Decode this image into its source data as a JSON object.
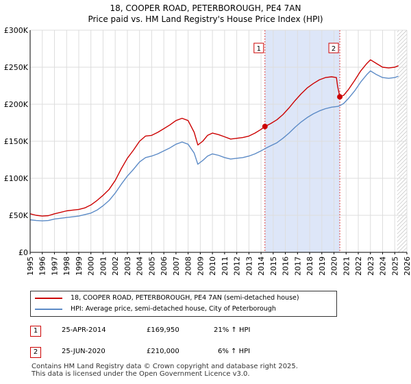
{
  "title": {
    "line1": "18, COOPER ROAD, PETERBOROUGH, PE4 7AN",
    "line2": "Price paid vs. HM Land Registry's House Price Index (HPI)"
  },
  "colors": {
    "property": "#cc0000",
    "hpi": "#5b8ac6",
    "shade": "#dde6f8",
    "grid": "#dddddd",
    "marker_line": "#dd4444"
  },
  "chart_data": {
    "type": "line",
    "xlabel": "",
    "ylabel": "",
    "xlim": [
      1995,
      2026
    ],
    "ylim": [
      0,
      300000
    ],
    "yticks": [
      0,
      50000,
      100000,
      150000,
      200000,
      250000,
      300000
    ],
    "ytick_labels": [
      "£0",
      "£50K",
      "£100K",
      "£150K",
      "£200K",
      "£250K",
      "£300K"
    ],
    "xticks": [
      "1995",
      "1996",
      "1997",
      "1998",
      "1999",
      "2000",
      "2001",
      "2002",
      "2003",
      "2004",
      "2005",
      "2006",
      "2007",
      "2008",
      "2009",
      "2010",
      "2011",
      "2012",
      "2013",
      "2014",
      "2015",
      "2016",
      "2017",
      "2018",
      "2019",
      "2020",
      "2021",
      "2022",
      "2023",
      "2024",
      "2025",
      "2026"
    ],
    "grid": true,
    "shaded_range": [
      2014.32,
      2020.48
    ],
    "future_hatch_from": 2025.2,
    "series": [
      {
        "name": "18, COOPER ROAD, PETERBOROUGH, PE4 7AN (semi-detached house)",
        "points": [
          [
            1995.0,
            52000
          ],
          [
            1995.5,
            50000
          ],
          [
            1996.0,
            49000
          ],
          [
            1996.5,
            49500
          ],
          [
            1997.0,
            52000
          ],
          [
            1997.5,
            54000
          ],
          [
            1998.0,
            56000
          ],
          [
            1998.5,
            57000
          ],
          [
            1999.0,
            58000
          ],
          [
            1999.5,
            60000
          ],
          [
            2000.0,
            64000
          ],
          [
            2000.5,
            70000
          ],
          [
            2001.0,
            77000
          ],
          [
            2001.5,
            85000
          ],
          [
            2002.0,
            97000
          ],
          [
            2002.5,
            113000
          ],
          [
            2003.0,
            127000
          ],
          [
            2003.5,
            138000
          ],
          [
            2004.0,
            150000
          ],
          [
            2004.5,
            157000
          ],
          [
            2005.0,
            158000
          ],
          [
            2005.5,
            162000
          ],
          [
            2006.0,
            167000
          ],
          [
            2006.5,
            172000
          ],
          [
            2007.0,
            178000
          ],
          [
            2007.5,
            181000
          ],
          [
            2008.0,
            178000
          ],
          [
            2008.5,
            162000
          ],
          [
            2008.8,
            145000
          ],
          [
            2009.2,
            150000
          ],
          [
            2009.6,
            158000
          ],
          [
            2010.0,
            161000
          ],
          [
            2010.5,
            159000
          ],
          [
            2011.0,
            156000
          ],
          [
            2011.5,
            153000
          ],
          [
            2012.0,
            154000
          ],
          [
            2012.5,
            155000
          ],
          [
            2013.0,
            157000
          ],
          [
            2013.5,
            161000
          ],
          [
            2014.0,
            166000
          ],
          [
            2014.32,
            169950
          ],
          [
            2014.8,
            174000
          ],
          [
            2015.3,
            179000
          ],
          [
            2015.8,
            186000
          ],
          [
            2016.3,
            195000
          ],
          [
            2016.8,
            205000
          ],
          [
            2017.3,
            214000
          ],
          [
            2017.8,
            222000
          ],
          [
            2018.3,
            228000
          ],
          [
            2018.8,
            233000
          ],
          [
            2019.3,
            236000
          ],
          [
            2019.8,
            237000
          ],
          [
            2020.2,
            236000
          ],
          [
            2020.3,
            224000
          ],
          [
            2020.48,
            210000
          ],
          [
            2020.8,
            212000
          ],
          [
            2021.2,
            220000
          ],
          [
            2021.7,
            232000
          ],
          [
            2022.2,
            245000
          ],
          [
            2022.7,
            255000
          ],
          [
            2023.0,
            260000
          ],
          [
            2023.5,
            255000
          ],
          [
            2024.0,
            250000
          ],
          [
            2024.5,
            249000
          ],
          [
            2025.0,
            250000
          ],
          [
            2025.3,
            252000
          ]
        ]
      },
      {
        "name": "HPI: Average price, semi-detached house, City of Peterborough",
        "points": [
          [
            1995.0,
            44000
          ],
          [
            1995.5,
            43000
          ],
          [
            1996.0,
            42500
          ],
          [
            1996.5,
            43000
          ],
          [
            1997.0,
            45000
          ],
          [
            1997.5,
            46000
          ],
          [
            1998.0,
            47000
          ],
          [
            1998.5,
            48000
          ],
          [
            1999.0,
            49000
          ],
          [
            1999.5,
            51000
          ],
          [
            2000.0,
            53000
          ],
          [
            2000.5,
            57000
          ],
          [
            2001.0,
            63000
          ],
          [
            2001.5,
            70000
          ],
          [
            2002.0,
            80000
          ],
          [
            2002.5,
            92000
          ],
          [
            2003.0,
            103000
          ],
          [
            2003.5,
            112000
          ],
          [
            2004.0,
            122000
          ],
          [
            2004.5,
            128000
          ],
          [
            2005.0,
            130000
          ],
          [
            2005.5,
            133000
          ],
          [
            2006.0,
            137000
          ],
          [
            2006.5,
            141000
          ],
          [
            2007.0,
            146000
          ],
          [
            2007.5,
            149000
          ],
          [
            2008.0,
            146000
          ],
          [
            2008.5,
            134000
          ],
          [
            2008.8,
            119000
          ],
          [
            2009.2,
            124000
          ],
          [
            2009.6,
            130000
          ],
          [
            2010.0,
            133000
          ],
          [
            2010.5,
            131000
          ],
          [
            2011.0,
            128000
          ],
          [
            2011.5,
            126000
          ],
          [
            2012.0,
            127000
          ],
          [
            2012.5,
            128000
          ],
          [
            2013.0,
            130000
          ],
          [
            2013.5,
            133000
          ],
          [
            2014.0,
            137000
          ],
          [
            2014.32,
            140000
          ],
          [
            2014.8,
            144000
          ],
          [
            2015.3,
            148000
          ],
          [
            2015.8,
            154000
          ],
          [
            2016.3,
            161000
          ],
          [
            2016.8,
            169000
          ],
          [
            2017.3,
            176000
          ],
          [
            2017.8,
            182000
          ],
          [
            2018.3,
            187000
          ],
          [
            2018.8,
            191000
          ],
          [
            2019.3,
            194000
          ],
          [
            2019.8,
            196000
          ],
          [
            2020.3,
            197000
          ],
          [
            2020.48,
            198000
          ],
          [
            2020.8,
            201000
          ],
          [
            2021.2,
            208000
          ],
          [
            2021.7,
            218000
          ],
          [
            2022.2,
            230000
          ],
          [
            2022.7,
            240000
          ],
          [
            2023.0,
            245000
          ],
          [
            2023.5,
            240000
          ],
          [
            2024.0,
            236000
          ],
          [
            2024.5,
            235000
          ],
          [
            2025.0,
            236000
          ],
          [
            2025.3,
            238000
          ]
        ]
      }
    ],
    "annotations": [
      {
        "label": "1",
        "x": 2014.32,
        "y": 169950
      },
      {
        "label": "2",
        "x": 2020.48,
        "y": 210000
      }
    ]
  },
  "legend": {
    "property_label": "18, COOPER ROAD, PETERBOROUGH, PE4 7AN (semi-detached house)",
    "hpi_label": "HPI: Average price, semi-detached house, City of Peterborough"
  },
  "transactions": [
    {
      "num": "1",
      "date": "25-APR-2014",
      "price": "£169,950",
      "hpi": "21% ↑ HPI"
    },
    {
      "num": "2",
      "date": "25-JUN-2020",
      "price": "£210,000",
      "hpi": "6% ↑ HPI"
    }
  ],
  "footer": {
    "line1": "Contains HM Land Registry data © Crown copyright and database right 2025.",
    "line2": "This data is licensed under the Open Government Licence v3.0."
  }
}
